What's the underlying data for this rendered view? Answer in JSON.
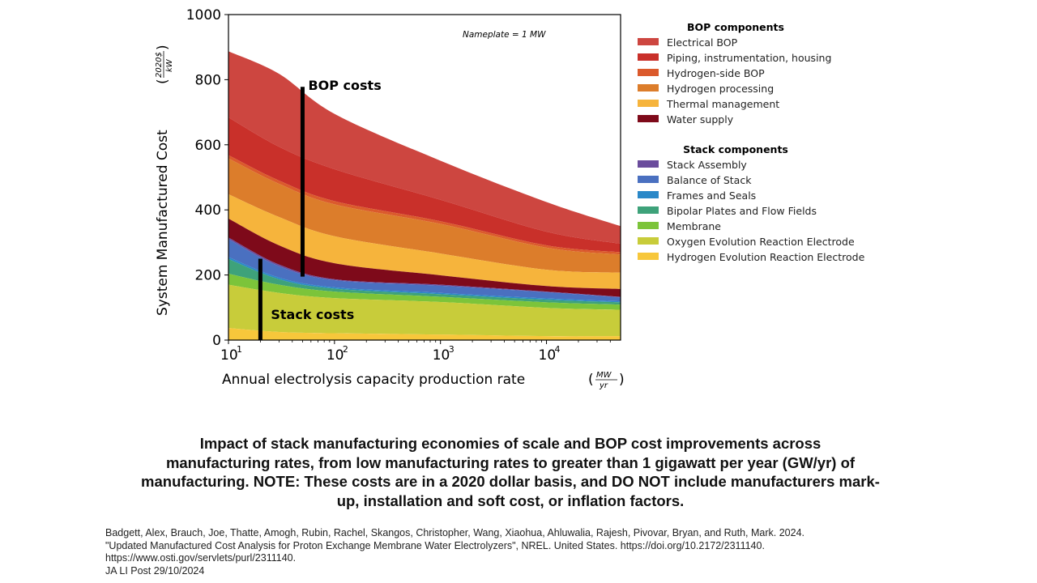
{
  "chart_data": {
    "type": "area",
    "stacked": true,
    "x_scale": "log",
    "xlim": [
      10,
      50000
    ],
    "ylim": [
      0,
      1000
    ],
    "x": [
      10,
      30,
      100,
      1000,
      10000,
      50000
    ],
    "xlabel": "Annual electrolysis capacity production rate",
    "xlabel_unit_num": "MW",
    "xlabel_unit_den": "yr",
    "ylabel": "System Manufactured Cost",
    "ylabel_unit_num": "2020$",
    "ylabel_unit_den": "kW",
    "x_ticks": [
      {
        "value": 10,
        "label": "10",
        "exp": "1"
      },
      {
        "value": 100,
        "label": "10",
        "exp": "2"
      },
      {
        "value": 1000,
        "label": "10",
        "exp": "3"
      },
      {
        "value": 10000,
        "label": "10",
        "exp": "4"
      }
    ],
    "y_ticks": [
      "0",
      "200",
      "400",
      "600",
      "800",
      "1000"
    ],
    "grid": false,
    "legend_position": "right-outside",
    "annotation": "Nameplate = 1 MW",
    "callouts": [
      {
        "label": "BOP costs",
        "x": 50,
        "y_from": 195,
        "y_to": 778
      },
      {
        "label": "Stack costs",
        "x": 20,
        "y_from": 0,
        "y_to": 250
      }
    ],
    "legend_groups": [
      {
        "title": "BOP components",
        "items": [
          0,
          1,
          2,
          3,
          4,
          5
        ]
      },
      {
        "title": "Stack components",
        "items": [
          6,
          7,
          8,
          9,
          10,
          11,
          12
        ]
      }
    ],
    "series": [
      {
        "name": "Electrical BOP",
        "color": "#cd4640",
        "values": [
          203,
          224,
          170,
          120,
          91,
          54
        ]
      },
      {
        "name": "Piping, instrumentation, housing",
        "color": "#c9302a",
        "values": [
          116,
          104,
          98,
          66,
          42,
          26
        ]
      },
      {
        "name": "Hydrogen-side BOP",
        "color": "#db5a2c",
        "values": [
          10,
          10,
          10,
          8,
          7,
          7
        ]
      },
      {
        "name": "Hydrogen processing",
        "color": "#dc7d2b",
        "values": [
          110,
          102,
          98,
          91,
          68,
          56
        ]
      },
      {
        "name": "Thermal management",
        "color": "#f6b43c",
        "values": [
          75,
          87,
          83,
          67,
          50,
          50
        ]
      },
      {
        "name": "Water supply",
        "color": "#7e0a1a",
        "values": [
          58,
          59,
          49,
          29,
          17,
          24
        ]
      },
      {
        "name": "Stack Assembly",
        "color": "#6a4c9c",
        "values": [
          5,
          5,
          3,
          3,
          2,
          2
        ]
      },
      {
        "name": "Balance of Stack",
        "color": "#4a70c0",
        "values": [
          55,
          35,
          22,
          22,
          19,
          12
        ]
      },
      {
        "name": "Frames and Seals",
        "color": "#2a88c8",
        "values": [
          6,
          5,
          4,
          4,
          4,
          3
        ]
      },
      {
        "name": "Bipolar Plates and Flow Fields",
        "color": "#3ea27a",
        "values": [
          45,
          17,
          9,
          8,
          8,
          7
        ]
      },
      {
        "name": "Membrane",
        "color": "#7cc43a",
        "values": [
          34,
          25,
          20,
          16,
          17,
          16
        ]
      },
      {
        "name": "Oxygen Evolution Reaction Electrode",
        "color": "#c8cc3a",
        "values": [
          133,
          120,
          108,
          100,
          87,
          81
        ]
      },
      {
        "name": "Hydrogen Evolution Reaction Electrode",
        "color": "#f7c73b",
        "values": [
          37,
          25,
          21,
          17,
          12,
          12
        ]
      }
    ]
  },
  "caption": [
    "Impact of stack manufacturing economies of scale and BOP cost improvements across",
    "manufacturing rates, from low manufacturing rates to greater than 1 gigawatt per year (GW/yr) of",
    "manufacturing. NOTE: These costs are in a 2020 dollar basis, and DO NOT include manufacturers mark-",
    "up, installation and soft cost, or inflation factors."
  ],
  "citation": [
    "Badgett, Alex, Brauch, Joe, Thatte, Amogh, Rubin, Rachel, Skangos, Christopher, Wang, Xiaohua, Ahluwalia, Rajesh, Pivovar, Bryan, and Ruth, Mark. 2024.",
    "\"Updated Manufactured Cost Analysis for Proton Exchange Membrane Water Electrolyzers\", NREL. United States. https://doi.org/10.2172/2311140.",
    "https://www.osti.gov/servlets/purl/2311140.",
    "JA LI Post 29/10/2024"
  ]
}
